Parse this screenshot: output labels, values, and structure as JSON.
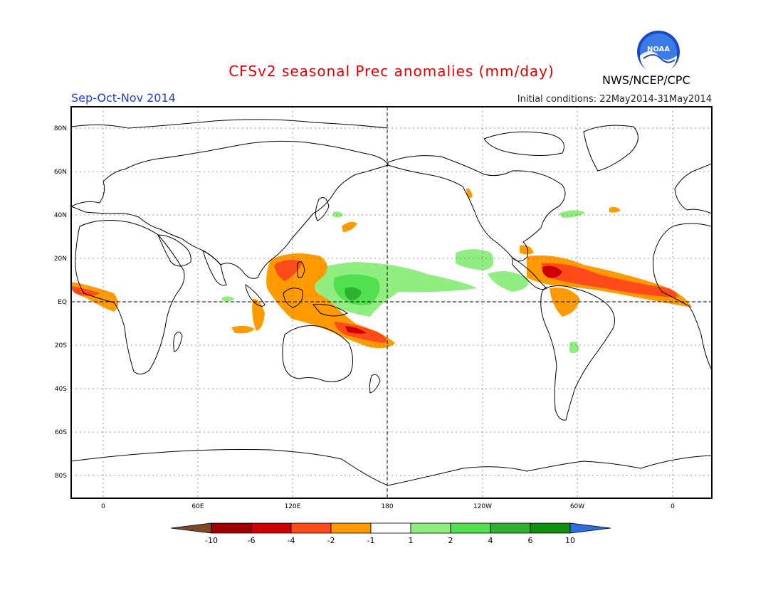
{
  "header": {
    "title": "CFSv2 seasonal Prec anomalies (mm/day)",
    "season": "Sep-Oct-Nov 2014",
    "initial_conditions": "Initial conditions: 22May2014-31May2014",
    "agency": "NWS/NCEP/CPC",
    "logo_text": "NOAA"
  },
  "map": {
    "lat_labels": [
      "80N",
      "60N",
      "40N",
      "20N",
      "EQ",
      "20S",
      "40S",
      "60S",
      "80S"
    ],
    "lon_labels": [
      "0",
      "60E",
      "120E",
      "180",
      "120W",
      "60W",
      "0"
    ]
  },
  "colorbar": {
    "labels": [
      "-10",
      "-6",
      "-4",
      "-2",
      "-1",
      "1",
      "2",
      "4",
      "6",
      "10"
    ],
    "colors": [
      "#7a4a2a",
      "#a00000",
      "#cc0000",
      "#ff4a1a",
      "#ff9a00",
      "#ffffff",
      "#90ee80",
      "#50e050",
      "#30b030",
      "#109010",
      "#2a70e0"
    ]
  },
  "colors": {
    "wet_light": "#90ee80",
    "wet_mid": "#50e050",
    "wet_dark": "#30b030",
    "dry_orange": "#ff9a00",
    "dry_red": "#ff4a1a",
    "dry_dark": "#cc0000"
  }
}
